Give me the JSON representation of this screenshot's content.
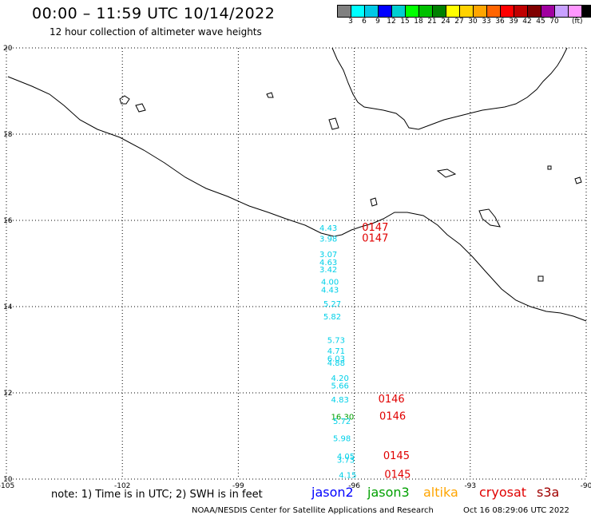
{
  "header": {
    "title": "00:00 – 11:59 UTC 10/14/2022",
    "subtitle": "12 hour collection of altimeter wave heights"
  },
  "colorbar": {
    "colors": [
      "#808080",
      "#00ffff",
      "#00c8e6",
      "#0000ff",
      "#00ced1",
      "#00ff00",
      "#00c000",
      "#008000",
      "#ffff00",
      "#ffd200",
      "#ffa500",
      "#ff6400",
      "#ff0000",
      "#c00000",
      "#800000",
      "#a000a0",
      "#c8a0ff",
      "#ff96ff",
      "#000000"
    ],
    "ticks": [
      "3",
      "6",
      "9",
      "12",
      "15",
      "18",
      "21",
      "24",
      "27",
      "30",
      "33",
      "36",
      "39",
      "42",
      "45",
      "70"
    ],
    "unit": "(ft)"
  },
  "axes": {
    "lon_labels": [
      "-105",
      "-102",
      "-99",
      "-96",
      "-93",
      "-90"
    ],
    "lat_labels": [
      "20",
      "18",
      "16",
      "14",
      "12",
      "10"
    ],
    "lon_range": [
      -105,
      -90
    ],
    "lat_range": [
      10,
      20
    ]
  },
  "observations": [
    {
      "text": "4.43",
      "color": "#00d0e8",
      "lon": -96.9,
      "lat": 15.83
    },
    {
      "text": "0147",
      "color": "#e00000",
      "lon": -95.8,
      "lat": 15.83
    },
    {
      "text": "3.98",
      "color": "#00d0e8",
      "lon": -96.9,
      "lat": 15.58
    },
    {
      "text": "0147",
      "color": "#e00000",
      "lon": -95.8,
      "lat": 15.58
    },
    {
      "text": "3.07",
      "color": "#00d0e8",
      "lon": -96.9,
      "lat": 15.22
    },
    {
      "text": "4.63",
      "color": "#00d0e8",
      "lon": -96.9,
      "lat": 15.04
    },
    {
      "text": "3.42",
      "color": "#00d0e8",
      "lon": -96.9,
      "lat": 14.87
    },
    {
      "text": "4.00",
      "color": "#00d0e8",
      "lon": -96.86,
      "lat": 14.58
    },
    {
      "text": "4.43",
      "color": "#00d0e8",
      "lon": -96.86,
      "lat": 14.4
    },
    {
      "text": "5.27",
      "color": "#00d0e8",
      "lon": -96.8,
      "lat": 14.07
    },
    {
      "text": "5.82",
      "color": "#00d0e8",
      "lon": -96.8,
      "lat": 13.78
    },
    {
      "text": "5.73",
      "color": "#00d0e8",
      "lon": -96.7,
      "lat": 13.23
    },
    {
      "text": "4.71",
      "color": "#00d0e8",
      "lon": -96.7,
      "lat": 12.98
    },
    {
      "text": "6.03",
      "color": "#00d0e8",
      "lon": -96.7,
      "lat": 12.81
    },
    {
      "text": "4.88",
      "color": "#00d0e8",
      "lon": -96.7,
      "lat": 12.7
    },
    {
      "text": "4.20",
      "color": "#00d0e8",
      "lon": -96.6,
      "lat": 12.35
    },
    {
      "text": "5.66",
      "color": "#00d0e8",
      "lon": -96.6,
      "lat": 12.18
    },
    {
      "text": "4.83",
      "color": "#00d0e8",
      "lon": -96.6,
      "lat": 11.85
    },
    {
      "text": "0146",
      "color": "#e00000",
      "lon": -95.38,
      "lat": 11.85
    },
    {
      "text": "16.30",
      "color": "#00a000",
      "lon": -96.6,
      "lat": 11.45
    },
    {
      "text": "5.72",
      "color": "#00d0e8",
      "lon": -96.55,
      "lat": 11.35
    },
    {
      "text": "0146",
      "color": "#e00000",
      "lon": -95.35,
      "lat": 11.45
    },
    {
      "text": "5.98",
      "color": "#00d0e8",
      "lon": -96.55,
      "lat": 10.95
    },
    {
      "text": "4.05",
      "color": "#00d0e8",
      "lon": -96.45,
      "lat": 10.54
    },
    {
      "text": "3.73",
      "color": "#00d0e8",
      "lon": -96.45,
      "lat": 10.45
    },
    {
      "text": "0145",
      "color": "#e00000",
      "lon": -95.25,
      "lat": 10.54
    },
    {
      "text": "4.15",
      "color": "#00d0e8",
      "lon": -96.4,
      "lat": 10.1
    },
    {
      "text": "0145",
      "color": "#e00000",
      "lon": -95.22,
      "lat": 10.1
    }
  ],
  "footer": {
    "note": "note: 1) Time is in UTC; 2) SWH is in feet",
    "satellites": [
      {
        "name": "jason2",
        "color": "#0000ff"
      },
      {
        "name": "jason3",
        "color": "#00a000"
      },
      {
        "name": "altika",
        "color": "#ffa500"
      },
      {
        "name": "cryosat",
        "color": "#e00000"
      },
      {
        "name": "s3a",
        "color": "#a00000"
      }
    ],
    "credit": "NOAA/NESDIS Center for Satellite Applications and Research",
    "timestamp": "Oct 16 08:29:06 UTC 2022"
  }
}
